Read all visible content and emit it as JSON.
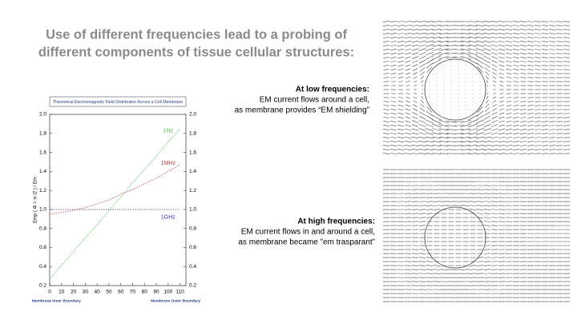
{
  "slide": {
    "title": [
      "Use of different frequencies lead to a probing of",
      "different components of tissue cellular structures:"
    ],
    "low": {
      "heading": "At low frequencies:",
      "lines": [
        "EM current flows around a cell,",
        "as membrane provides “EM shielding”"
      ]
    },
    "high": {
      "heading": "At high frequencies:",
      "lines": [
        "EM current flows in and around a cell,",
        "as membrane became ”em trasparant”"
      ]
    }
  },
  "chart_data": {
    "type": "line",
    "title": "Theoretical Electromagnetic Field Distribution Across a Cell Membrane",
    "y_label": "Emp ( Φ = π /2 ) / Em",
    "annotations": [
      "Membrane Inner Boundary",
      "Membrane Outer Boundary"
    ],
    "x": [
      0,
      10,
      20,
      30,
      40,
      50,
      60,
      70,
      80,
      90,
      100,
      110
    ],
    "series": [
      {
        "name": "1Hz",
        "color": "#3fcf3f",
        "values": [
          0.27,
          0.41,
          0.56,
          0.7,
          0.84,
          0.99,
          1.13,
          1.28,
          1.42,
          1.56,
          1.71,
          1.85
        ]
      },
      {
        "name": "1MHz",
        "color": "#dd3535",
        "values": [
          0.95,
          0.97,
          0.99,
          1.02,
          1.06,
          1.1,
          1.16,
          1.21,
          1.27,
          1.33,
          1.4,
          1.47
        ]
      },
      {
        "name": "1GHz",
        "color": "#3535cc",
        "values": [
          1.0,
          1.0,
          1.0,
          1.0,
          1.0,
          1.0,
          1.0,
          1.0,
          1.0,
          1.0,
          1.0,
          1.0
        ]
      }
    ],
    "xlim": [
      0,
      115
    ],
    "xticks": [
      0,
      10,
      20,
      30,
      40,
      50,
      60,
      70,
      80,
      90,
      100,
      110
    ],
    "ylim": [
      0.2,
      2.0
    ],
    "yticks": [
      0.2,
      0.4,
      0.6,
      0.8,
      {
        "value": 1.0,
        "label": "1.0"
      },
      1.2,
      1.4,
      1.6,
      1.8,
      {
        "value": 2.0,
        "label": "2.0"
      }
    ],
    "y2lim": [
      0.2,
      2.0
    ],
    "y2ticks": [
      0.2,
      0.4,
      0.6,
      0.8,
      {
        "value": 1.0,
        "label": "1.0"
      },
      1.2,
      1.4,
      1.6,
      1.8,
      {
        "value": 2.0,
        "label": "2.0"
      }
    ],
    "line_style": "dotted"
  }
}
